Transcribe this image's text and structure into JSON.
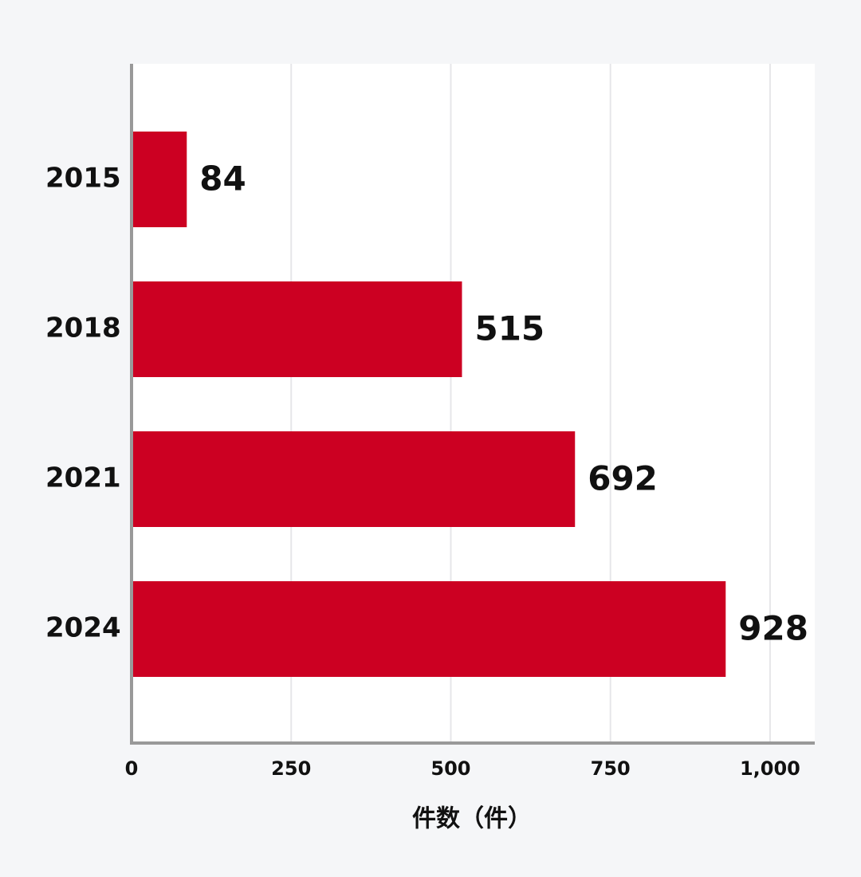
{
  "chart_data": {
    "type": "bar",
    "orientation": "horizontal",
    "x_label": "件数（件）",
    "categories": [
      "2015",
      "2018",
      "2021",
      "2024"
    ],
    "values": [
      84,
      515,
      692,
      928
    ],
    "color": "#cc0022",
    "xlim": [
      0,
      1070
    ],
    "xticks": [
      0,
      250,
      500,
      750,
      {
        "value": 1000,
        "label": "1,000"
      }
    ],
    "grid": true
  }
}
